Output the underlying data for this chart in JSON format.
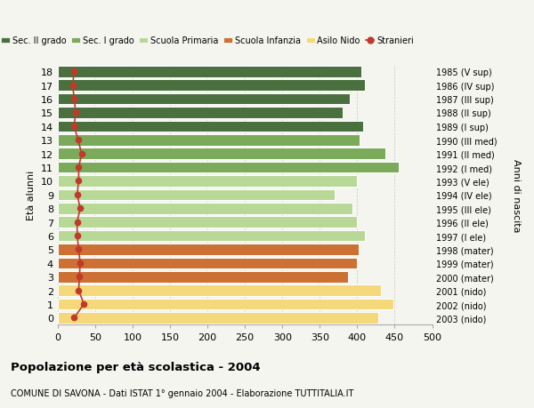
{
  "ages": [
    0,
    1,
    2,
    3,
    4,
    5,
    6,
    7,
    8,
    9,
    10,
    11,
    12,
    13,
    14,
    15,
    16,
    17,
    18
  ],
  "bar_values": [
    428,
    448,
    432,
    388,
    400,
    402,
    410,
    400,
    393,
    370,
    400,
    455,
    438,
    403,
    408,
    380,
    390,
    410,
    405
  ],
  "stranieri": [
    22,
    35,
    28,
    29,
    30,
    28,
    26,
    26,
    30,
    26,
    28,
    28,
    32,
    27,
    22,
    24,
    22,
    20,
    22
  ],
  "right_labels": [
    "2003 (nido)",
    "2002 (nido)",
    "2001 (nido)",
    "2000 (mater)",
    "1999 (mater)",
    "1998 (mater)",
    "1997 (I ele)",
    "1996 (II ele)",
    "1995 (III ele)",
    "1994 (IV ele)",
    "1993 (V ele)",
    "1992 (I med)",
    "1991 (II med)",
    "1990 (III med)",
    "1989 (I sup)",
    "1988 (II sup)",
    "1987 (III sup)",
    "1986 (IV sup)",
    "1985 (V sup)"
  ],
  "bar_colors": [
    "#f5d87a",
    "#f5d87a",
    "#f5d87a",
    "#cc7033",
    "#cc7033",
    "#cc7033",
    "#b8d898",
    "#b8d898",
    "#b8d898",
    "#b8d898",
    "#b8d898",
    "#7aaa5a",
    "#7aaa5a",
    "#7aaa5a",
    "#4a7040",
    "#4a7040",
    "#4a7040",
    "#4a7040",
    "#4a7040"
  ],
  "legend_labels": [
    "Sec. II grado",
    "Sec. I grado",
    "Scuola Primaria",
    "Scuola Infanzia",
    "Asilo Nido",
    "Stranieri"
  ],
  "legend_colors": [
    "#4a7040",
    "#7aaa5a",
    "#b8d898",
    "#cc7033",
    "#f5d87a",
    "#c0392b"
  ],
  "stranieri_color": "#c0392b",
  "ylabel": "Età alunni",
  "right_ylabel": "Anni di nascita",
  "title": "Popolazione per età scolastica - 2004",
  "subtitle": "COMUNE DI SAVONA - Dati ISTAT 1° gennaio 2004 - Elaborazione TUTTITALIA.IT",
  "xlim": [
    0,
    500
  ],
  "xticks": [
    0,
    50,
    100,
    150,
    200,
    250,
    300,
    350,
    400,
    450,
    500
  ],
  "bg_color": "#f5f5f0"
}
